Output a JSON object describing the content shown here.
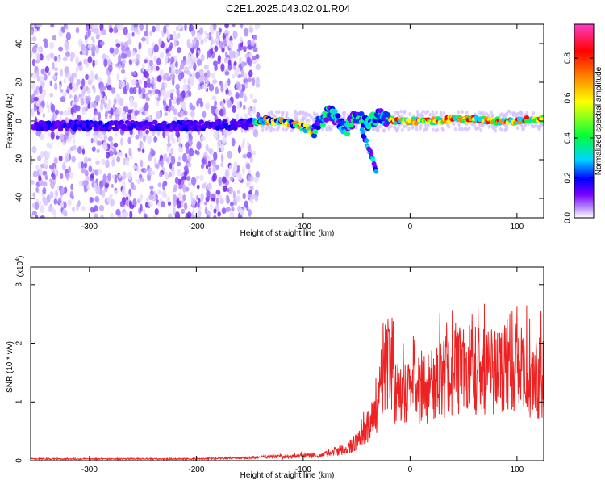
{
  "title": "C2E1.2025.043.02.01.R04",
  "chart_data": [
    {
      "type": "heatmap",
      "xlabel": "Height of straight line (km)",
      "ylabel": "Frequency (Hz)",
      "xlim": [
        -355,
        125
      ],
      "ylim": [
        -50,
        50
      ],
      "xticks": [
        -300,
        -200,
        -100,
        0,
        100
      ],
      "yticks": [
        -40,
        -20,
        0,
        20,
        40
      ],
      "colorbar": {
        "label": "Normalized spectral amplitude",
        "range": [
          0,
          0.97
        ],
        "ticks": [
          0.0,
          0.2,
          0.4,
          0.6,
          0.8
        ],
        "colors": [
          "#ffffff",
          "#7a00ff",
          "#0000ff",
          "#00d4ff",
          "#00ff3c",
          "#ffff00",
          "#ff8c00",
          "#ff0000",
          "#ff3cc8"
        ]
      },
      "ridge": [
        {
          "x": -355,
          "y": -2.5
        },
        {
          "x": -300,
          "y": -2.5
        },
        {
          "x": -250,
          "y": -2.5
        },
        {
          "x": -200,
          "y": -2.5
        },
        {
          "x": -150,
          "y": -1.5
        },
        {
          "x": -140,
          "y": 0.5
        },
        {
          "x": -120,
          "y": 0
        },
        {
          "x": -100,
          "y": -3
        },
        {
          "x": -90,
          "y": -5
        },
        {
          "x": -75,
          "y": 5
        },
        {
          "x": -60,
          "y": -4
        },
        {
          "x": -50,
          "y": 3
        },
        {
          "x": -40,
          "y": -2
        },
        {
          "x": -30,
          "y": 3
        },
        {
          "x": -20,
          "y": 0.5
        },
        {
          "x": 0,
          "y": 0
        },
        {
          "x": 20,
          "y": 0
        },
        {
          "x": 40,
          "y": 1
        },
        {
          "x": 60,
          "y": 1
        },
        {
          "x": 80,
          "y": 0
        },
        {
          "x": 100,
          "y": 0
        },
        {
          "x": 125,
          "y": 1.5
        }
      ],
      "branch": [
        {
          "x": -45,
          "y": -5
        },
        {
          "x": -40,
          "y": -12
        },
        {
          "x": -35,
          "y": -20
        },
        {
          "x": -31,
          "y": -27
        }
      ]
    },
    {
      "type": "line",
      "xlabel": "Height of straight line (km)",
      "ylabel": "SNR (10 * v/v)",
      "ymultiplier": "(x10",
      "ymultiplier_exp": "4",
      "ymultiplier_close": ")",
      "xlim": [
        -355,
        125
      ],
      "ylim": [
        0,
        3.3
      ],
      "xticks": [
        -300,
        -200,
        -100,
        0,
        100
      ],
      "yticks": [
        0,
        1,
        2,
        3
      ],
      "color": "#ee2222",
      "envelope": [
        {
          "x": -355,
          "y": 0.03
        },
        {
          "x": -200,
          "y": 0.03
        },
        {
          "x": -150,
          "y": 0.05
        },
        {
          "x": -120,
          "y": 0.08
        },
        {
          "x": -100,
          "y": 0.12
        },
        {
          "x": -80,
          "y": 0.15
        },
        {
          "x": -60,
          "y": 0.3
        },
        {
          "x": -45,
          "y": 0.55
        },
        {
          "x": -35,
          "y": 1.0
        },
        {
          "x": -28,
          "y": 1.6
        },
        {
          "x": -24,
          "y": 2.5
        },
        {
          "x": -18,
          "y": 2.1
        },
        {
          "x": -10,
          "y": 1.5
        },
        {
          "x": 0,
          "y": 1.65
        },
        {
          "x": 10,
          "y": 1.7
        },
        {
          "x": 20,
          "y": 1.85
        },
        {
          "x": 40,
          "y": 2.1
        },
        {
          "x": 60,
          "y": 2.2
        },
        {
          "x": 80,
          "y": 2.15
        },
        {
          "x": 95,
          "y": 2.4
        },
        {
          "x": 110,
          "y": 2.0
        },
        {
          "x": 125,
          "y": 2.0
        }
      ]
    }
  ]
}
